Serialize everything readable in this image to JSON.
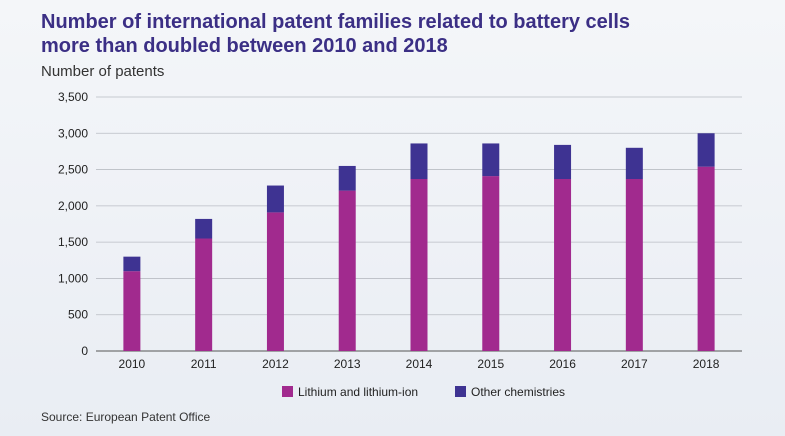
{
  "chart_data": {
    "type": "bar",
    "stacked": true,
    "title": "Number of international patent families related to battery cells more than doubled between 2010 and 2018",
    "ylabel": "Number of patents",
    "xlabel": "",
    "source": "Source: European Patent Office",
    "categories": [
      "2010",
      "2011",
      "2012",
      "2013",
      "2014",
      "2015",
      "2016",
      "2017",
      "2018"
    ],
    "series": [
      {
        "name": "Lithium and lithium-ion",
        "color": "#a12a8e",
        "values": [
          1100,
          1550,
          1910,
          2210,
          2370,
          2410,
          2370,
          2370,
          2540
        ]
      },
      {
        "name": "Other chemistries",
        "color": "#3e3392",
        "values": [
          200,
          270,
          370,
          340,
          490,
          450,
          470,
          430,
          460
        ]
      }
    ],
    "ylim": [
      0,
      3500
    ],
    "yticks": [
      0,
      500,
      1000,
      1500,
      2000,
      2500,
      3000,
      3500
    ],
    "ytick_labels": [
      "0",
      "500",
      "1,000",
      "1,500",
      "2,000",
      "2,500",
      "3,000",
      "3,500"
    ],
    "grid": true,
    "legend": "bottom"
  }
}
